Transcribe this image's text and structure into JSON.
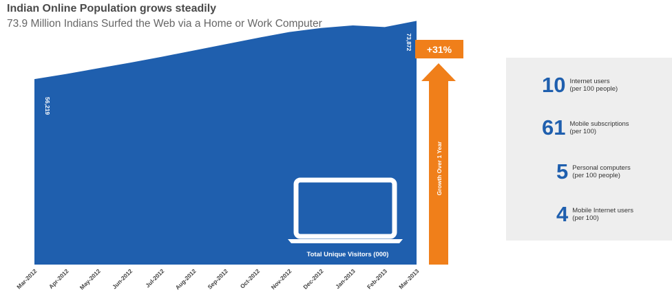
{
  "title": "Indian Online Population grows steadily",
  "subtitle": "73.9 Million Indians Surfed the Web via a Home or Work Computer",
  "growth": {
    "badge": "+31%",
    "label": "Growth Over 1 Year"
  },
  "colors": {
    "area": "#1f5fae",
    "accent": "#f07f1a",
    "panel": "#eeeeee"
  },
  "chart_data": {
    "type": "area",
    "categories": [
      "Mar-2012",
      "Apr-2012",
      "May-2012",
      "Jun-2012",
      "Jul-2012",
      "Aug-2012",
      "Sep-2012",
      "Oct-2012",
      "Nov-2012",
      "Dec-2012",
      "Jan-2013",
      "Feb-2013",
      "Mar-2013"
    ],
    "values": [
      56219,
      57800,
      59500,
      61200,
      63000,
      64900,
      66800,
      68700,
      70500,
      71700,
      72500,
      72000,
      73872
    ],
    "data_labels": {
      "first": "56,219",
      "last": "73,872"
    },
    "series_label": "Total Unique Visitors (000)",
    "ylim": [
      0,
      75000
    ]
  },
  "stats": [
    {
      "value": "10",
      "label1": "Internet users",
      "label2": "(per 100 people)"
    },
    {
      "value": "61",
      "label1": "Mobile subscriptions",
      "label2": "(per 100)"
    },
    {
      "value": "5",
      "label1": "Personal computers",
      "label2": "(per 100 people)"
    },
    {
      "value": "4",
      "label1": "Mobile Internet users",
      "label2": "(per 100)"
    }
  ],
  "icons": {
    "laptop": "laptop-icon",
    "arrow": "growth-arrow-icon"
  }
}
